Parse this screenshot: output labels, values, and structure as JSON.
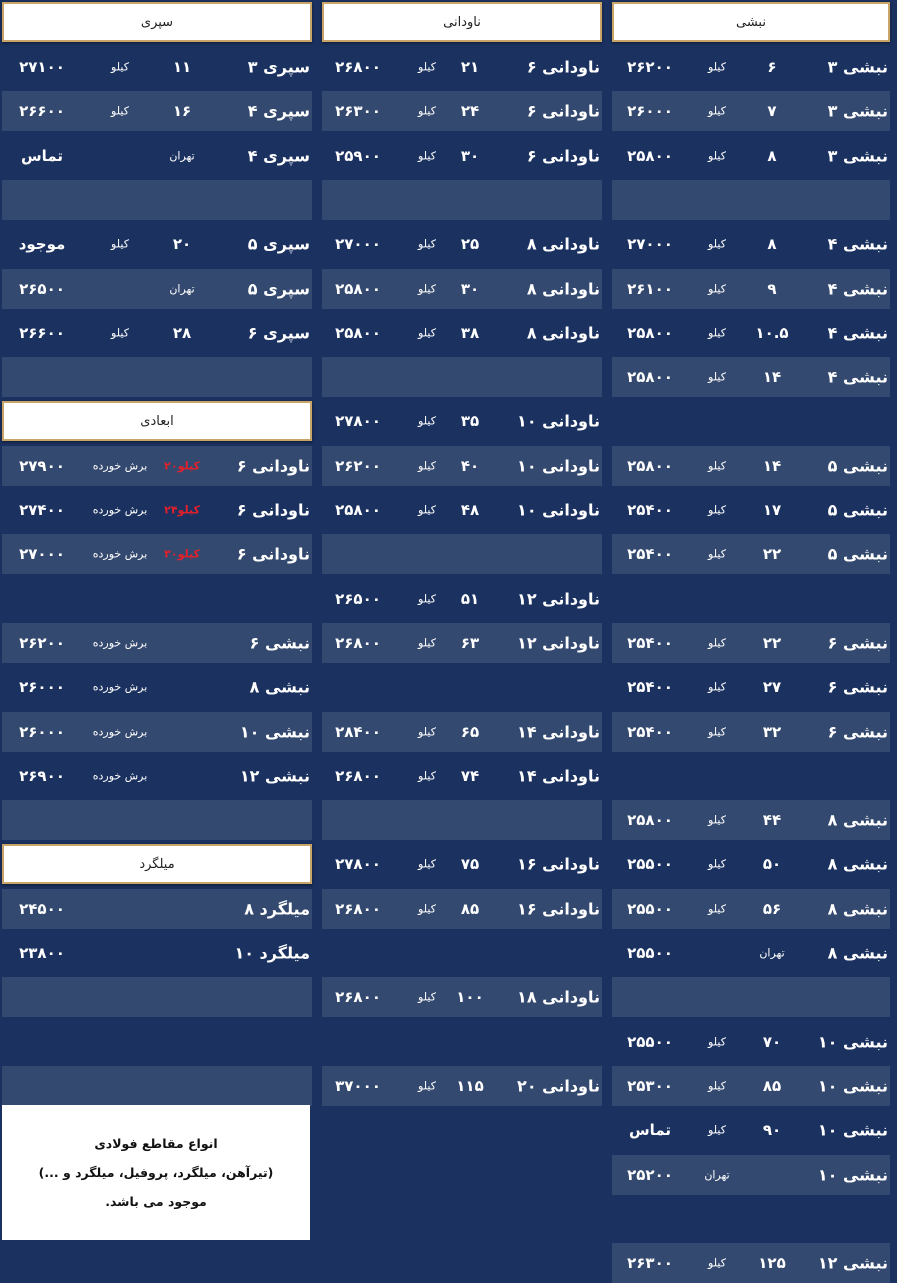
{
  "colors": {
    "background": "#1b3160",
    "row_light": "#34496f",
    "header_border": "#c9a668",
    "accent_red": "#e4202a"
  },
  "columns": [
    {
      "id": "nabshi",
      "header": "نبشی",
      "rows": [
        {
          "n": "نبشی ۳",
          "w": "۶",
          "u": "کیلو",
          "p": "۲۶۲۰۰"
        },
        {
          "n": "نبشی ۳",
          "w": "۷",
          "u": "کیلو",
          "p": "۲۶۰۰۰"
        },
        {
          "n": "نبشی ۳",
          "w": "۸",
          "u": "کیلو",
          "p": "۲۵۸۰۰"
        },
        {},
        {
          "n": "نبشی ۴",
          "w": "۸",
          "u": "کیلو",
          "p": "۲۷۰۰۰"
        },
        {
          "n": "نبشی ۴",
          "w": "۹",
          "u": "کیلو",
          "p": "۲۶۱۰۰"
        },
        {
          "n": "نبشی ۴",
          "w": "۱۰.۵",
          "u": "کیلو",
          "p": "۲۵۸۰۰"
        },
        {
          "n": "نبشی ۴",
          "w": "۱۴",
          "u": "کیلو",
          "p": "۲۵۸۰۰"
        },
        null,
        {
          "n": "نبشی ۵",
          "w": "۱۴",
          "u": "کیلو",
          "p": "۲۵۸۰۰"
        },
        {
          "n": "نبشی ۵",
          "w": "۱۷",
          "u": "کیلو",
          "p": "۲۵۴۰۰"
        },
        {
          "n": "نبشی ۵",
          "w": "۲۲",
          "u": "کیلو",
          "p": "۲۵۴۰۰"
        },
        null,
        {
          "n": "نبشی ۶",
          "w": "۲۲",
          "u": "کیلو",
          "p": "۲۵۴۰۰"
        },
        {
          "n": "نبشی ۶",
          "w": "۲۷",
          "u": "کیلو",
          "p": "۲۵۴۰۰"
        },
        {
          "n": "نبشی ۶",
          "w": "۳۲",
          "u": "کیلو",
          "p": "۲۵۴۰۰"
        },
        null,
        {
          "n": "نبشی ۸",
          "w": "۴۴",
          "u": "کیلو",
          "p": "۲۵۸۰۰"
        },
        {
          "n": "نبشی ۸",
          "w": "۵۰",
          "u": "کیلو",
          "p": "۲۵۵۰۰"
        },
        {
          "n": "نبشی ۸",
          "w": "۵۶",
          "u": "کیلو",
          "p": "۲۵۵۰۰"
        },
        {
          "n": "نبشی ۸",
          "w": "تهران",
          "p": "۲۵۵۰۰"
        },
        {},
        {
          "n": "نبشی ۱۰",
          "w": "۷۰",
          "u": "کیلو",
          "p": "۲۵۵۰۰"
        },
        {
          "n": "نبشی ۱۰",
          "w": "۸۵",
          "u": "کیلو",
          "p": "۲۵۳۰۰"
        },
        {
          "n": "نبشی ۱۰",
          "w": "۹۰",
          "u": "کیلو",
          "p": "تماس"
        },
        {
          "n": "نبشی ۱۰",
          "u": "تهران",
          "p": "۲۵۲۰۰"
        },
        null,
        {
          "n": "نبشی ۱۲",
          "w": "۱۲۵",
          "u": "کیلو",
          "p": "۲۶۳۰۰"
        }
      ]
    },
    {
      "id": "navdani",
      "header": "ناودانی",
      "rows": [
        {
          "n": "ناودانی ۶",
          "w": "۲۱",
          "u": "کیلو",
          "p": "۲۶۸۰۰"
        },
        {
          "n": "ناودانی ۶",
          "w": "۲۴",
          "u": "کیلو",
          "p": "۲۶۳۰۰"
        },
        {
          "n": "ناودانی ۶",
          "w": "۳۰",
          "u": "کیلو",
          "p": "۲۵۹۰۰"
        },
        {},
        {
          "n": "ناودانی ۸",
          "w": "۲۵",
          "u": "کیلو",
          "p": "۲۷۰۰۰"
        },
        {
          "n": "ناودانی ۸",
          "w": "۳۰",
          "u": "کیلو",
          "p": "۲۵۸۰۰"
        },
        {
          "n": "ناودانی ۸",
          "w": "۳۸",
          "u": "کیلو",
          "p": "۲۵۸۰۰"
        },
        {},
        {
          "n": "ناودانی ۱۰",
          "w": "۳۵",
          "u": "کیلو",
          "p": "۲۷۸۰۰"
        },
        {
          "n": "ناودانی ۱۰",
          "w": "۴۰",
          "u": "کیلو",
          "p": "۲۶۲۰۰"
        },
        {
          "n": "ناودانی ۱۰",
          "w": "۴۸",
          "u": "کیلو",
          "p": "۲۵۸۰۰"
        },
        {},
        {
          "n": "ناودانی ۱۲",
          "w": "۵۱",
          "u": "کیلو",
          "p": "۲۶۵۰۰"
        },
        {
          "n": "ناودانی ۱۲",
          "w": "۶۳",
          "u": "کیلو",
          "p": "۲۶۸۰۰"
        },
        null,
        {
          "n": "ناودانی ۱۴",
          "w": "۶۵",
          "u": "کیلو",
          "p": "۲۸۴۰۰"
        },
        {
          "n": "ناودانی ۱۴",
          "w": "۷۴",
          "u": "کیلو",
          "p": "۲۶۸۰۰"
        },
        {},
        {
          "n": "ناودانی ۱۶",
          "w": "۷۵",
          "u": "کیلو",
          "p": "۲۷۸۰۰"
        },
        {
          "n": "ناودانی ۱۶",
          "w": "۸۵",
          "u": "کیلو",
          "p": "۲۶۸۰۰"
        },
        null,
        {
          "n": "ناودانی ۱۸",
          "w": "۱۰۰",
          "u": "کیلو",
          "p": "۲۶۸۰۰"
        },
        null,
        {
          "n": "ناودانی ۲۰",
          "w": "۱۱۵",
          "u": "کیلو",
          "p": "۳۷۰۰۰"
        },
        null,
        null,
        null,
        null
      ]
    },
    {
      "id": "sepri",
      "header": "سپری",
      "rows": [
        {
          "n": "سپری ۳",
          "w": "۱۱",
          "u": "کیلو",
          "p": "۲۷۱۰۰"
        },
        {
          "n": "سپری ۴",
          "w": "۱۶",
          "u": "کیلو",
          "p": "۲۶۶۰۰"
        },
        {
          "n": "سپری ۴",
          "w": "تهران",
          "p": "تماس"
        },
        {},
        {
          "n": "سپری ۵",
          "w": "۲۰",
          "u": "کیلو",
          "p": "موجود"
        },
        {
          "n": "سپری ۵",
          "w": "تهران",
          "p": "۲۶۵۰۰"
        },
        {
          "n": "سپری ۶",
          "w": "۲۸",
          "u": "کیلو",
          "p": "۲۶۶۰۰"
        },
        {},
        {
          "header": "ابعادی"
        },
        {
          "n": "ناودانی ۶",
          "w": "۲۰کیلو",
          "w_red": true,
          "u": "برش خورده",
          "p": "۲۷۹۰۰"
        },
        {
          "n": "ناودانی ۶",
          "w": "۲۴کیلو",
          "w_red": true,
          "u": "برش خورده",
          "p": "۲۷۴۰۰"
        },
        {
          "n": "ناودانی ۶",
          "w": "۳۰کیلو",
          "w_red": true,
          "u": "برش خورده",
          "p": "۲۷۰۰۰"
        },
        null,
        {
          "n": "نبشی ۶",
          "u": "برش خورده",
          "p": "۲۶۲۰۰"
        },
        {
          "n": "نبشی ۸",
          "u": "برش خورده",
          "p": "۲۶۰۰۰"
        },
        {
          "n": "نبشی ۱۰",
          "u": "برش خورده",
          "p": "۲۶۰۰۰"
        },
        {
          "n": "نبشی ۱۲",
          "u": "برش خورده",
          "p": "۲۶۹۰۰"
        },
        {},
        {
          "header": "میلگرد"
        },
        {
          "n": "میلگرد ۸",
          "p": "۲۴۵۰۰"
        },
        {
          "n": "میلگرد ۱۰",
          "p": "۲۳۸۰۰"
        },
        {},
        null,
        {},
        null,
        null,
        null,
        null
      ]
    }
  ],
  "note": {
    "line1": "انواع مقاطع فولادی",
    "line2": "(تیرآهن، میلگرد، پروفیل، میلگرد و ...)",
    "line3": "موجود می باشد."
  }
}
